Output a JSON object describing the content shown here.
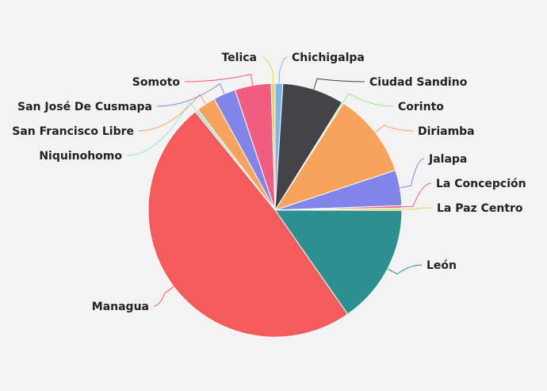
{
  "chart_data": {
    "type": "pie",
    "series": [
      {
        "values": [
          {
            "label": "Chichigalpa",
            "value": 1.0,
            "color": "#7cb5ec"
          },
          {
            "label": "Ciudad Sandino",
            "value": 8.0,
            "color": "#434348"
          },
          {
            "label": "Corinto",
            "value": 0.2,
            "color": "#90ed7d"
          },
          {
            "label": "Diriamba",
            "value": 11.0,
            "color": "#f7a35c"
          },
          {
            "label": "Jalapa",
            "value": 4.6,
            "color": "#8085e9"
          },
          {
            "label": "La Concepción",
            "value": 0.3,
            "color": "#f15c80"
          },
          {
            "label": "La Paz Centro",
            "value": 0.3,
            "color": "#e4d354"
          },
          {
            "label": "León",
            "value": 15.5,
            "color": "#2b908f"
          },
          {
            "label": "Managua",
            "value": 49.6,
            "color": "#f45b5b"
          },
          {
            "label": "Niquinohomo",
            "value": 0.4,
            "color": "#91e8e1"
          },
          {
            "label": "San Francisco Libre",
            "value": 2.5,
            "color": "#f7a35c"
          },
          {
            "label": "San José De Cusmapa",
            "value": 2.9,
            "color": "#8085e9"
          },
          {
            "label": "Somoto",
            "value": 4.7,
            "color": "#f15c80"
          },
          {
            "label": "Telica",
            "value": 0.5,
            "color": "#e4d354"
          }
        ]
      }
    ]
  }
}
